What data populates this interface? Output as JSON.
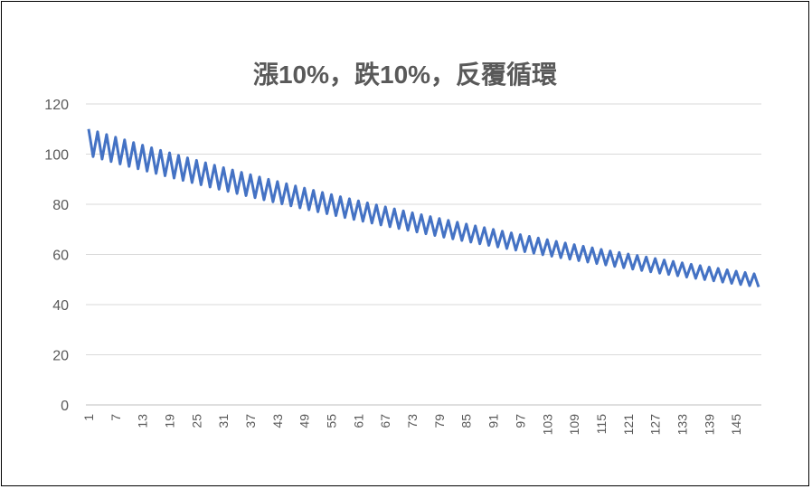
{
  "chart_data": {
    "type": "line",
    "title": "漲10%，跌10%，反覆循環",
    "xlabel": "",
    "ylabel": "",
    "ylim": [
      0,
      120
    ],
    "yticks": [
      "0",
      "20",
      "40",
      "60",
      "80",
      "100",
      "120"
    ],
    "xlim": [
      1,
      150
    ],
    "xticks": [
      "1",
      "7",
      "13",
      "19",
      "25",
      "31",
      "37",
      "43",
      "49",
      "55",
      "61",
      "67",
      "73",
      "79",
      "85",
      "91",
      "97",
      "103",
      "109",
      "115",
      "121",
      "127",
      "133",
      "139",
      "145"
    ],
    "grid": true,
    "legend": "none",
    "series": [
      {
        "color": "#4472C4",
        "start_value": 110,
        "pattern": "alternating: after a rise of 10% the next point falls 10%, repeating",
        "x_first": 1,
        "x_last": 150,
        "values": [
          110,
          99,
          108.9,
          98.01,
          107.81,
          97.03,
          106.73,
          96.06,
          105.67,
          95.1,
          104.61,
          94.15,
          103.57,
          93.21,
          102.53,
          92.28,
          101.5,
          91.35,
          100.49,
          90.44,
          99.48,
          89.53,
          98.49,
          88.64,
          97.5,
          87.75,
          96.53,
          86.87,
          95.56,
          86.0,
          94.6,
          85.14,
          93.66,
          84.29,
          92.72,
          83.45,
          91.79,
          82.61,
          90.87,
          81.79,
          89.96,
          80.97,
          89.06,
          80.16,
          88.17,
          79.36,
          87.29,
          78.56,
          86.42,
          77.78,
          85.55,
          77.0,
          84.7,
          76.23,
          83.85,
          75.47,
          83.01,
          74.71,
          82.18,
          73.96,
          81.36,
          73.22,
          80.54,
          72.49,
          79.74,
          71.76,
          78.94,
          71.05,
          78.15,
          70.34,
          77.37,
          69.63,
          76.6,
          68.94,
          75.83,
          68.25,
          75.07,
          67.57,
          74.32,
          66.89,
          73.58,
          66.22,
          72.84,
          65.56,
          72.11,
          64.9,
          71.39,
          64.25,
          70.68,
          63.61,
          69.97,
          62.97,
          69.27,
          62.34,
          68.58,
          61.72,
          67.89,
          61.1,
          67.21,
          60.49,
          66.54,
          59.89,
          65.87,
          59.29,
          65.21,
          58.69,
          64.56,
          58.1,
          63.91,
          57.52,
          63.27,
          56.95,
          62.64,
          56.38,
          62.01,
          55.81,
          61.39,
          55.25,
          60.78,
          54.7,
          60.17,
          54.15,
          59.57,
          53.61,
          58.97,
          53.07,
          58.38,
          52.55,
          57.8,
          52.02,
          57.22,
          51.5,
          56.65,
          50.98,
          56.08,
          50.47,
          55.52,
          49.97,
          54.96,
          49.47,
          54.42,
          48.97,
          53.87,
          48.48,
          53.33,
          48.0,
          52.8,
          47.52,
          52.27,
          47.04
        ]
      }
    ]
  }
}
